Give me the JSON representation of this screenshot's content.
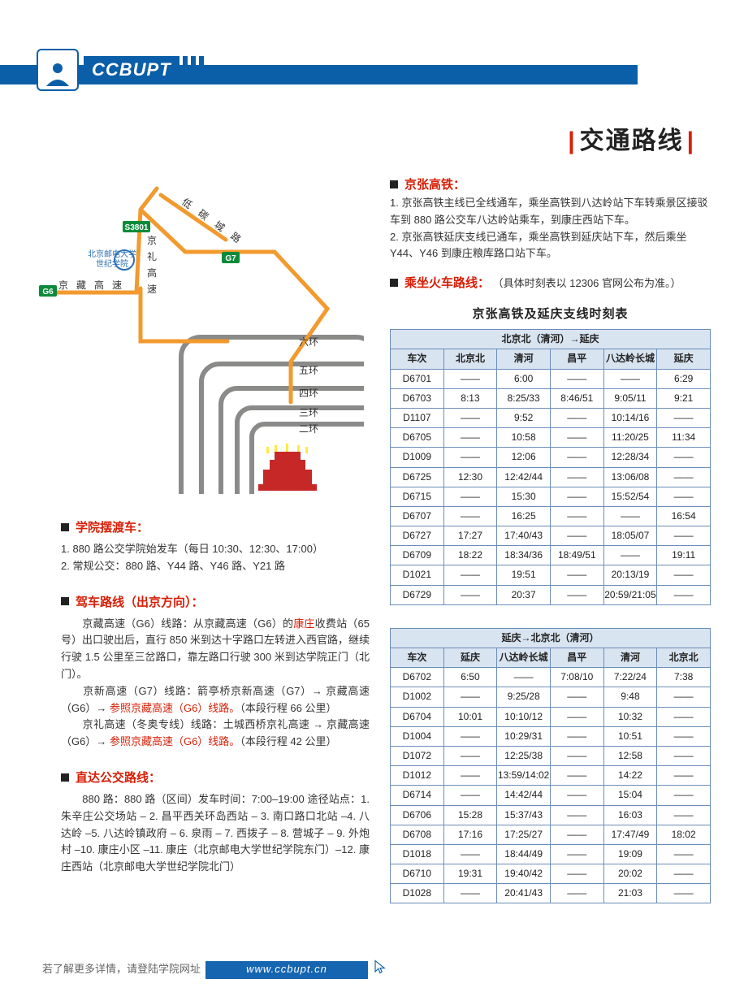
{
  "header": {
    "brand": "CCBUPT"
  },
  "pageTitle": "交通路线",
  "map": {
    "roads": [
      "低 碳 城 路",
      "京 礼 高 速",
      "京 藏 高 速"
    ],
    "badges": [
      "S3801",
      "G7",
      "G6"
    ],
    "rings": [
      "六环",
      "五环",
      "四环",
      "三环",
      "二环"
    ],
    "school": "北京邮电大学\n世纪学院"
  },
  "sections": {
    "shuttle": {
      "title": "学院摆渡车：",
      "lines": [
        "1. 880 路公交学院始发车（每日 10:30、12:30、17:00）",
        "2. 常规公交：880 路、Y44 路、Y46 路、Y21 路"
      ]
    },
    "drive": {
      "title": "驾车路线（出京方向）：",
      "body": "　　京藏高速（G6）线路：从京藏高速（G6）的康庄收费站（65 号）出口驶出后，直行 850 米到达十字路口左转进入西官路，继续行驶 1.5 公里至三岔路口，靠左路口行驶 300 米到达学院正门（北门）。\n　　京新高速（G7）线路：箭亭桥京新高速（G7）→ 京藏高速（G6）→ 参照京藏高速（G6）线路。（本段行程 66 公里）\n　　京礼高速（冬奥专线）线路：土城西桥京礼高速 → 京藏高速（G6）→ 参照京藏高速（G6）线路。（本段行程 42 公里）",
      "reds": [
        "康庄",
        "参照京藏高速（G6）线路。",
        "参照京藏高速（G6）线路。"
      ]
    },
    "bus": {
      "title": "直达公交路线：",
      "body": "　　880 路：880 路（区间）发车时间：7:00–19:00 途径站点：1. 朱辛庄公交场站 – 2. 昌平西关环岛西站 – 3. 南口路口北站 –4. 八达岭 –5. 八达岭镇政府 – 6. 泉雨 – 7. 西拨子 – 8. 营城子 – 9. 外炮村 –10. 康庄小区 –11. 康庄（北京邮电大学世纪学院东门）–12. 康庄西站（北京邮电大学世纪学院北门）"
    }
  },
  "right": {
    "hsr": {
      "title": "京张高铁：",
      "lines": [
        "1. 京张高铁主线已全线通车，乘坐高铁到八达岭站下车转乘景区接驳车到 880 路公交车八达岭站乘车，到康庄西站下车。",
        "2. 京张高铁延庆支线已通车，乘坐高铁到延庆站下车，然后乘坐 Y44、Y46 到康庄粮库路口站下车。"
      ]
    },
    "train": {
      "title": "乘坐火车路线：",
      "note": "（具体时刻表以 12306 官网公布为准。）"
    },
    "timetable": {
      "title": "京张高铁及延庆支线时刻表",
      "t1": {
        "dir": "北京北（清河）→延庆",
        "cols": [
          "车次",
          "北京北",
          "清河",
          "昌平",
          "八达岭长城",
          "延庆"
        ],
        "rows": [
          [
            "D6701",
            "——",
            "6:00",
            "——",
            "——",
            "6:29"
          ],
          [
            "D6703",
            "8:13",
            "8:25/33",
            "8:46/51",
            "9:05/11",
            "9:21"
          ],
          [
            "D1107",
            "——",
            "9:52",
            "——",
            "10:14/16",
            "——"
          ],
          [
            "D6705",
            "——",
            "10:58",
            "——",
            "11:20/25",
            "11:34"
          ],
          [
            "D1009",
            "——",
            "12:06",
            "——",
            "12:28/34",
            "——"
          ],
          [
            "D6725",
            "12:30",
            "12:42/44",
            "——",
            "13:06/08",
            "——"
          ],
          [
            "D6715",
            "——",
            "15:30",
            "——",
            "15:52/54",
            "——"
          ],
          [
            "D6707",
            "——",
            "16:25",
            "——",
            "——",
            "16:54"
          ],
          [
            "D6727",
            "17:27",
            "17:40/43",
            "——",
            "18:05/07",
            "——"
          ],
          [
            "D6709",
            "18:22",
            "18:34/36",
            "18:49/51",
            "——",
            "19:11"
          ],
          [
            "D1021",
            "——",
            "19:51",
            "——",
            "20:13/19",
            "——"
          ],
          [
            "D6729",
            "——",
            "20:37",
            "——",
            "20:59/21:05",
            "——"
          ]
        ]
      },
      "t2": {
        "dir": "延庆→北京北（清河）",
        "cols": [
          "车次",
          "延庆",
          "八达岭长城",
          "昌平",
          "清河",
          "北京北"
        ],
        "rows": [
          [
            "D6702",
            "6:50",
            "——",
            "7:08/10",
            "7:22/24",
            "7:38"
          ],
          [
            "D1002",
            "——",
            "9:25/28",
            "——",
            "9:48",
            "——"
          ],
          [
            "D6704",
            "10:01",
            "10:10/12",
            "——",
            "10:32",
            "——"
          ],
          [
            "D1004",
            "——",
            "10:29/31",
            "——",
            "10:51",
            "——"
          ],
          [
            "D1072",
            "——",
            "12:25/38",
            "——",
            "12:58",
            "——"
          ],
          [
            "D1012",
            "——",
            "13:59/14:02",
            "——",
            "14:22",
            "——"
          ],
          [
            "D6714",
            "——",
            "14:42/44",
            "——",
            "15:04",
            "——"
          ],
          [
            "D6706",
            "15:28",
            "15:37/43",
            "——",
            "16:03",
            "——"
          ],
          [
            "D6708",
            "17:16",
            "17:25/27",
            "——",
            "17:47/49",
            "18:02"
          ],
          [
            "D1018",
            "——",
            "18:44/49",
            "——",
            "19:09",
            "——"
          ],
          [
            "D6710",
            "19:31",
            "19:40/42",
            "——",
            "20:02",
            "——"
          ],
          [
            "D1028",
            "——",
            "20:41/43",
            "——",
            "21:03",
            "——"
          ]
        ]
      }
    }
  },
  "footer": {
    "prefix": "若了解更多详情，请登陆学院网址",
    "url": "www.ccbupt.cn"
  },
  "colors": {
    "brandBlue": "#0b5ea8",
    "footerBlue": "#1565b0",
    "accentRed": "#d81e06",
    "tableBorder": "#6b8db8",
    "tableHeaderBg": "#d9e4f1",
    "mapOrange": "#f29a2e",
    "mapGray": "#8a8a88",
    "mapGreen": "#0a8a3a",
    "mapRed": "#c62828"
  }
}
